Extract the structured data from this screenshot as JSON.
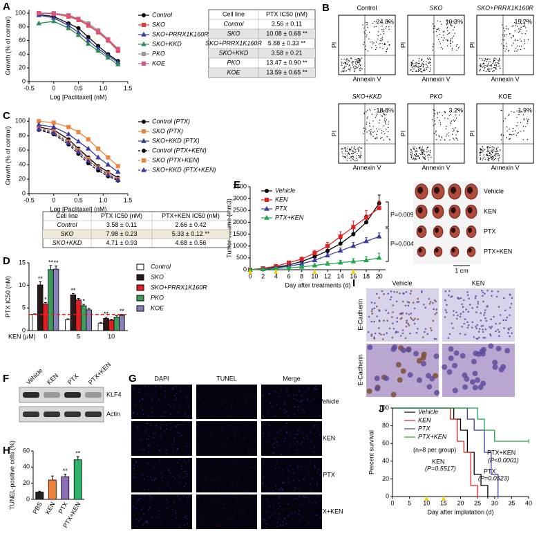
{
  "chart_data": [
    {
      "panel": "A",
      "type": "line",
      "x_label": "Log [Paclitaxel] (nM)",
      "y_label": "Growth (% of control)",
      "x": [
        -0.3,
        0,
        0.3,
        0.5,
        0.7,
        0.9,
        1.1,
        1.3
      ],
      "xlim": [
        -0.5,
        1.5
      ],
      "xticks": [
        -0.5,
        0,
        0.5,
        {
          "value": 1,
          "label": "1.0"
        },
        1.5
      ],
      "ylim": [
        0,
        105
      ],
      "yticks": [
        0,
        20,
        40,
        60,
        80,
        100
      ],
      "series": [
        {
          "name": "Control",
          "color": "#000000",
          "marker": "circle",
          "values": [
            98,
            95,
            85,
            78,
            65,
            52,
            40,
            30
          ]
        },
        {
          "name": "SKO",
          "color": "#e8383d",
          "marker": "square",
          "values": [
            100,
            99,
            95,
            90,
            82,
            72,
            60,
            45
          ]
        },
        {
          "name": "SKO+PRRX1K160R",
          "color": "#3b3b9e",
          "marker": "triangle",
          "values": [
            97,
            93,
            82,
            72,
            60,
            48,
            38,
            28
          ]
        },
        {
          "name": "SKO+KKD",
          "color": "#2e8b57",
          "marker": "triangle",
          "values": [
            85,
            88,
            78,
            68,
            55,
            45,
            35,
            25
          ]
        },
        {
          "name": "PKO",
          "color": "#999999",
          "marker": "square",
          "values": [
            100,
            100,
            97,
            92,
            85,
            75,
            62,
            48
          ]
        },
        {
          "name": "KOE",
          "color": "#e0507a",
          "marker": "square",
          "values": [
            100,
            99,
            96,
            91,
            83,
            73,
            61,
            47
          ]
        }
      ],
      "table": {
        "header": [
          "Cell line",
          "PTX IC50 (nM)"
        ],
        "rows": [
          [
            "Control",
            "3.56 ± 0.11"
          ],
          [
            "SKO",
            "10.08 ± 0.68 **"
          ],
          [
            "SKO+PRRX1K160R",
            "5.88 ± 0.33 **"
          ],
          [
            "SKO+KKD",
            "3.58 ± 0.21"
          ],
          [
            "PKO",
            "13.47 ± 0.90 **"
          ],
          [
            "KOE",
            "13.59 ± 0.65 **"
          ]
        ]
      }
    },
    {
      "panel": "C",
      "type": "line",
      "x_label": "Log [Paclitaxel] (nM)",
      "y_label": "Growth (% of control)",
      "x": [
        -0.3,
        0,
        0.3,
        0.5,
        0.7,
        0.9,
        1.1,
        1.3
      ],
      "xlim": [
        -0.5,
        1.5
      ],
      "xticks": [
        -0.5,
        0,
        0.5,
        {
          "value": 1,
          "label": "1.0"
        },
        1.5
      ],
      "ylim": [
        0,
        105
      ],
      "yticks": [
        0,
        20,
        40,
        60,
        80,
        100
      ],
      "series": [
        {
          "name": "Control (PTX)",
          "color": "#000000",
          "marker": "circle",
          "values": [
            92,
            88,
            75,
            62,
            50,
            38,
            30,
            22
          ]
        },
        {
          "name": "SKO (PTX)",
          "color": "#f0803c",
          "marker": "square",
          "values": [
            100,
            98,
            92,
            85,
            75,
            62,
            50,
            38
          ]
        },
        {
          "name": "SKO+KKD (PTX)",
          "color": "#3b3b9e",
          "marker": "triangle",
          "values": [
            95,
            92,
            82,
            72,
            62,
            50,
            40,
            30
          ]
        },
        {
          "name": "Control (PTX+KEN)",
          "color": "#000000",
          "marker": "circle",
          "dash": true,
          "values": [
            88,
            82,
            68,
            55,
            42,
            32,
            24,
            18
          ]
        },
        {
          "name": "SKO (PTX+KEN)",
          "color": "#f0803c",
          "marker": "square",
          "dash": true,
          "values": [
            90,
            86,
            72,
            60,
            48,
            36,
            28,
            20
          ]
        },
        {
          "name": "SKO+KKD (PTX+KEN)",
          "color": "#3b3b9e",
          "marker": "triangle",
          "dash": true,
          "values": [
            89,
            84,
            70,
            58,
            45,
            35,
            26,
            19
          ]
        }
      ],
      "table": {
        "header": [
          "Cell line",
          "PTX IC50 (nM)",
          "PTX+KEN IC50 (nM)"
        ],
        "rows": [
          [
            "Control",
            "3.58 ± 0.11",
            "2.66 ± 0.42"
          ],
          [
            "SKO",
            "7.98 ± 0.23",
            "5.33 ± 0.12 **"
          ],
          [
            "SKO+KKD",
            "4.71 ± 0.93",
            "4.68 ± 0.56"
          ]
        ]
      }
    },
    {
      "panel": "D",
      "type": "bar",
      "x_label": "KEN (μM)",
      "y_label": "PTX IC50 (nM)",
      "categories": [
        "0",
        "5",
        "10"
      ],
      "ylim": [
        0,
        15
      ],
      "yticks": [
        0,
        5,
        10,
        15
      ],
      "reference_line": {
        "value": 3.56,
        "color": "#e02020"
      },
      "series": [
        {
          "name": "Control",
          "color": "#ffffff",
          "values": [
            3.6,
            2.4,
            1.6
          ],
          "errors": [
            0.1,
            0.2,
            0.2
          ]
        },
        {
          "name": "SKO",
          "color": "#2b1a1a",
          "values": [
            10.1,
            7.9,
            2.7
          ],
          "errors": [
            0.7,
            0.3,
            0.3
          ],
          "stars": [
            "**",
            "**",
            "**"
          ]
        },
        {
          "name": "SKO+PRRX1K160R",
          "color": "#e02020",
          "values": [
            5.9,
            6.8,
            2.3
          ],
          "errors": [
            0.3,
            0.3,
            0.2
          ],
          "stars": [
            "*",
            null,
            null
          ]
        },
        {
          "name": "PKO",
          "color": "#3f9b5a",
          "values": [
            13.5,
            5.5,
            3.0
          ],
          "errors": [
            0.9,
            0.3,
            0.3
          ],
          "stars": [
            "**",
            "*",
            null
          ]
        },
        {
          "name": "KOE",
          "color": "#8a7fb8",
          "values": [
            13.6,
            4.6,
            3.3
          ],
          "errors": [
            0.7,
            0.3,
            0.3
          ],
          "stars": [
            "**",
            null,
            "**"
          ]
        }
      ]
    },
    {
      "panel": "E",
      "type": "line",
      "x_label": "Day after treatments (d)",
      "y_label": "Tumor volume (mm3)",
      "x": [
        0,
        2,
        4,
        6,
        8,
        10,
        12,
        14,
        16,
        18,
        20
      ],
      "xlim": [
        0,
        21
      ],
      "xticks": [
        0,
        2,
        4,
        6,
        8,
        10,
        12,
        14,
        16,
        18,
        20
      ],
      "ylim": [
        0,
        3500
      ],
      "yticks": [
        0,
        500,
        1000,
        1500,
        2000,
        2500,
        3000,
        3500
      ],
      "treatment_days": [
        0,
        4,
        10,
        16
      ],
      "series": [
        {
          "name": "Vehicle",
          "color": "#000000",
          "marker": "circle",
          "values": [
            0,
            50,
            100,
            200,
            350,
            550,
            800,
            1100,
            1500,
            2000,
            2800
          ],
          "errors": [
            0,
            20,
            40,
            60,
            80,
            100,
            150,
            200,
            250,
            300,
            350
          ]
        },
        {
          "name": "KEN",
          "color": "#e02020",
          "marker": "square",
          "values": [
            0,
            60,
            150,
            300,
            450,
            700,
            1000,
            1400,
            1800,
            2200,
            2600
          ],
          "errors": [
            0,
            20,
            40,
            60,
            80,
            120,
            150,
            200,
            250,
            300,
            300
          ]
        },
        {
          "name": "PTX",
          "color": "#3b3b9e",
          "marker": "triangle",
          "values": [
            0,
            30,
            80,
            150,
            250,
            400,
            600,
            800,
            1000,
            1200,
            1400
          ],
          "errors": [
            0,
            10,
            20,
            40,
            60,
            80,
            100,
            120,
            150,
            150,
            150
          ]
        },
        {
          "name": "PTX+KEN",
          "color": "#1fa64a",
          "marker": "triangle",
          "values": [
            0,
            20,
            50,
            80,
            120,
            180,
            250,
            300,
            350,
            400,
            500
          ],
          "errors": [
            0,
            10,
            20,
            30,
            40,
            60,
            80,
            100,
            120,
            150,
            200
          ]
        }
      ],
      "annotations": [
        "P=0.009",
        "P=0.004"
      ],
      "photo": {
        "labels": [
          "Vehicle",
          "KEN",
          "PTX",
          "PTX+KEN"
        ],
        "scale": "1 cm"
      }
    },
    {
      "panel": "H",
      "type": "bar",
      "y_label": "TUNEL-positive cells (%)",
      "categories": [
        "PBS",
        "KEN",
        "PTX",
        "PTX+KEN"
      ],
      "values": [
        9,
        24,
        28,
        49
      ],
      "errors": [
        1,
        5,
        3,
        4
      ],
      "colors": [
        "#222222",
        "#f0803c",
        "#8a6fb8",
        "#2db36a"
      ],
      "stars": [
        null,
        null,
        "**",
        "**"
      ],
      "ylim": [
        0,
        60
      ],
      "yticks": [
        0,
        20,
        40,
        60
      ]
    },
    {
      "panel": "J",
      "type": "line",
      "step": true,
      "x_label": "Day after implatation (d)",
      "y_label": "Percent survival",
      "xlim": [
        0,
        40
      ],
      "xticks": [
        0,
        5,
        10,
        15,
        20,
        25,
        30,
        35,
        40
      ],
      "ylim": [
        0,
        100
      ],
      "yticks": [
        0,
        20,
        40,
        60,
        80,
        100
      ],
      "treatment_days": [
        10,
        15
      ],
      "series": [
        {
          "name": "Vehicle",
          "color": "#000000",
          "x": [
            0,
            18,
            20,
            22,
            24,
            26,
            28
          ],
          "values": [
            100,
            87.5,
            75,
            50,
            25,
            12.5,
            0
          ]
        },
        {
          "name": "KEN",
          "color": "#e02020",
          "x": [
            0,
            17,
            19,
            21,
            23,
            25
          ],
          "values": [
            100,
            87.5,
            62.5,
            50,
            12.5,
            0
          ]
        },
        {
          "name": "PTX",
          "color": "#3b3b9e",
          "x": [
            0,
            22,
            24,
            27,
            29,
            31
          ],
          "values": [
            100,
            87.5,
            75,
            50,
            25,
            0
          ]
        },
        {
          "name": "PTX+KEN",
          "color": "#1fa64a",
          "x": [
            0,
            25,
            27,
            30,
            33,
            40
          ],
          "values": [
            100,
            87.5,
            75,
            62.5,
            62.5,
            62.5
          ]
        }
      ],
      "annotations": [
        {
          "text": "(n=8 per group)",
          "color": "#000000"
        },
        {
          "text": "PTX+KEN",
          "color": "#1fa64a"
        },
        {
          "text": "(P<0.0001)",
          "color": "#1fa64a"
        },
        {
          "text": "KEN",
          "color": "#e02020"
        },
        {
          "text": "(P=0.5517)",
          "color": "#e02020"
        },
        {
          "text": "PTX",
          "color": "#3b3b9e"
        },
        {
          "text": "(P=0.0523)",
          "color": "#3b3b9e"
        }
      ]
    }
  ],
  "flow": {
    "panel": "B",
    "x_label": "Annexin V",
    "y_label": "PI",
    "plots": [
      {
        "title": "Control",
        "percent": "24.8%"
      },
      {
        "title": "SKO",
        "percent": "10.3%"
      },
      {
        "title": "SKO+PRRX1K160R",
        "percent": "15.7%"
      },
      {
        "title": "SKO+KKD",
        "percent": "18.8%"
      },
      {
        "title": "PKO",
        "percent": "3.2%"
      },
      {
        "title": "KOE",
        "percent": "1.9%"
      }
    ]
  },
  "blot": {
    "panel": "F",
    "lanes": [
      "Vehicle",
      "KEN",
      "PTX",
      "PTX+KEN"
    ],
    "bands": [
      "KLF4",
      "Actin"
    ]
  },
  "tunel": {
    "panel": "G",
    "columns": [
      "DAPI",
      "TUNEL",
      "Merge"
    ],
    "rows": [
      "Vehicle",
      "KEN",
      "PTX",
      "PTX+KEN"
    ]
  },
  "ihc": {
    "panel": "I",
    "columns": [
      "Vehicle",
      "KEN"
    ],
    "rows": [
      "E-Cadherin",
      "E-Cadherin"
    ]
  }
}
